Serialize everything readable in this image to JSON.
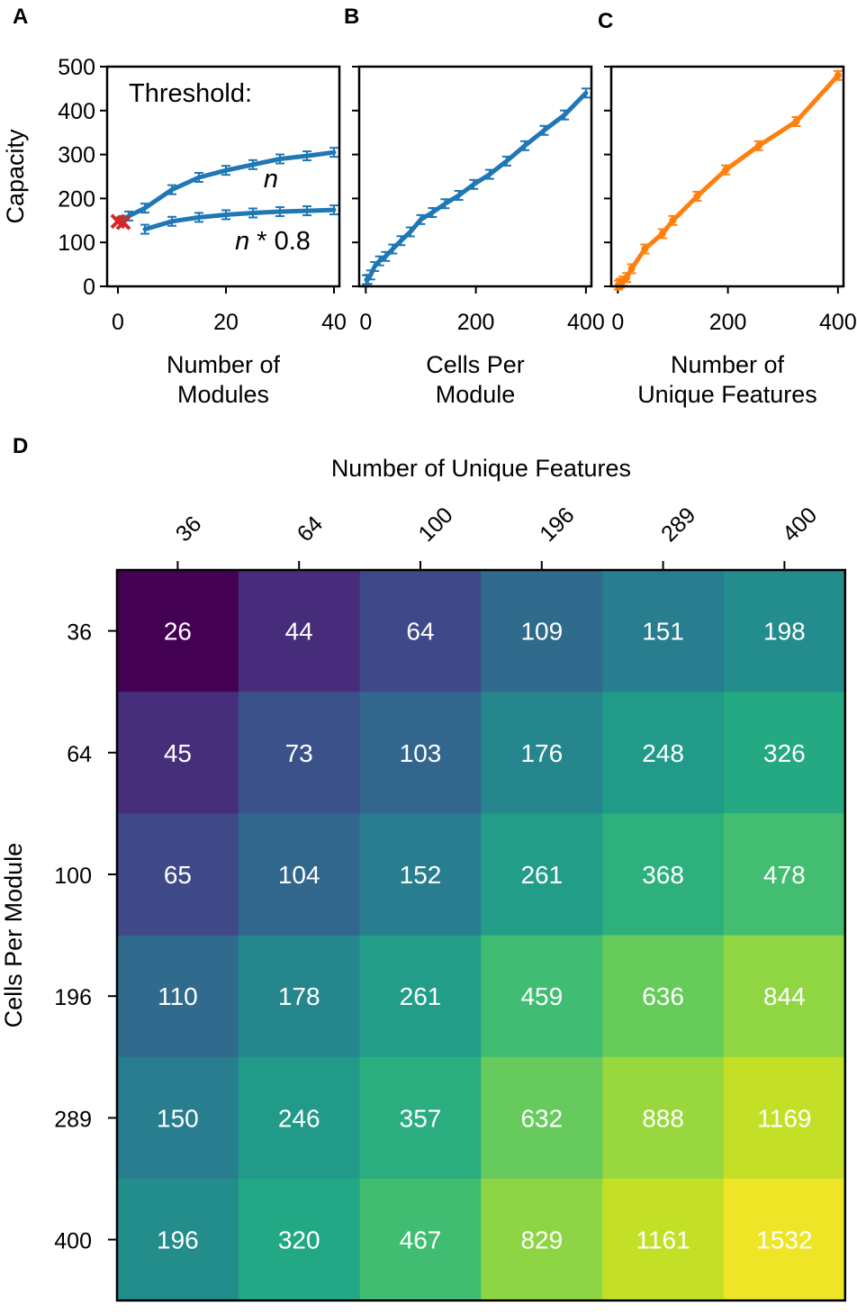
{
  "chart_data": [
    {
      "panel": "A",
      "type": "line",
      "ylabel": "Capacity",
      "xlabel": [
        "Number of",
        "Modules"
      ],
      "xlim": [
        -2,
        41
      ],
      "ylim": [
        0,
        500
      ],
      "xticks": [
        0,
        20,
        40
      ],
      "yticks": [
        0,
        100,
        200,
        300,
        400,
        500
      ],
      "annotations": [
        "Threshold:",
        "n",
        "n * 0.8"
      ],
      "color": "#1f77b4",
      "marker_color": "#d62728",
      "series": [
        {
          "x": [
            1,
            2,
            5,
            10,
            15,
            20,
            25,
            30,
            35,
            40
          ],
          "y": [
            150,
            160,
            178,
            220,
            248,
            264,
            277,
            290,
            297,
            305
          ]
        },
        {
          "x": [
            5,
            10,
            15,
            20,
            25,
            30,
            35,
            40
          ],
          "y": [
            130,
            148,
            157,
            163,
            167,
            170,
            172,
            174
          ]
        }
      ],
      "markers": [
        {
          "x": 0,
          "y": 148
        },
        {
          "x": 1,
          "y": 145
        }
      ]
    },
    {
      "panel": "B",
      "type": "line",
      "xlabel": [
        "Cells Per",
        "Module"
      ],
      "xlim": [
        -12,
        410
      ],
      "ylim": [
        0,
        500
      ],
      "xticks": [
        0,
        200,
        400
      ],
      "yticks": [
        0,
        100,
        200,
        300,
        400,
        500
      ],
      "color": "#1f77b4",
      "series": [
        {
          "x": [
            1,
            4,
            9,
            16,
            25,
            36,
            49,
            64,
            81,
            100,
            121,
            144,
            169,
            196,
            225,
            256,
            289,
            324,
            361,
            400
          ],
          "y": [
            15,
            16,
            26,
            45,
            58,
            68,
            85,
            104,
            124,
            152,
            168,
            188,
            207,
            232,
            255,
            285,
            320,
            355,
            390,
            440
          ]
        }
      ]
    },
    {
      "panel": "C",
      "type": "line",
      "xlabel": [
        "Number of",
        "Unique Features"
      ],
      "xlim": [
        -12,
        410
      ],
      "ylim": [
        0,
        500
      ],
      "xticks": [
        0,
        200,
        400
      ],
      "yticks": [
        0,
        100,
        200,
        300,
        400,
        500
      ],
      "color": "#ff7f0e",
      "series": [
        {
          "x": [
            1,
            4,
            9,
            16,
            25,
            49,
            81,
            100,
            144,
            196,
            256,
            324,
            400
          ],
          "y": [
            3,
            7,
            12,
            20,
            40,
            85,
            120,
            150,
            205,
            265,
            320,
            375,
            480
          ]
        }
      ]
    },
    {
      "panel": "D",
      "type": "heatmap",
      "xlabel": "Number of Unique Features",
      "ylabel": "Cells Per Module",
      "x_categories": [
        "36",
        "64",
        "100",
        "196",
        "289",
        "400"
      ],
      "y_categories": [
        "36",
        "64",
        "100",
        "196",
        "289",
        "400"
      ],
      "colormap": "viridis",
      "vmin": 26,
      "vmax": 1700,
      "values": [
        [
          26,
          44,
          64,
          109,
          151,
          198
        ],
        [
          45,
          73,
          103,
          176,
          248,
          326
        ],
        [
          65,
          104,
          152,
          261,
          368,
          478
        ],
        [
          110,
          178,
          261,
          459,
          636,
          844
        ],
        [
          150,
          246,
          357,
          632,
          888,
          1169
        ],
        [
          196,
          320,
          467,
          829,
          1161,
          1532
        ]
      ]
    }
  ]
}
